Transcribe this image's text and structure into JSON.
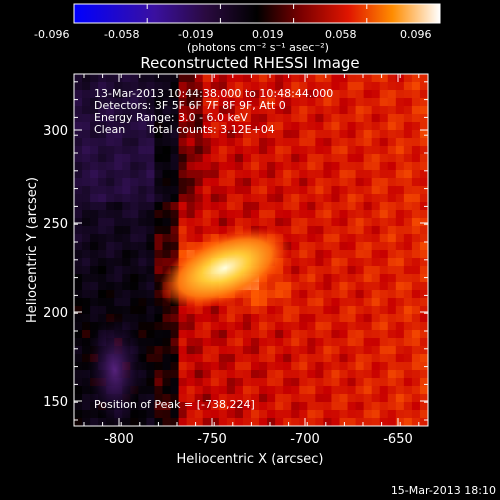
{
  "colorbar": {
    "tick_labels": [
      "-0.096",
      "-0.058",
      "-0.019",
      "0.019",
      "0.058",
      "0.096"
    ],
    "units": "(photons cm⁻² s⁻¹ asec⁻²)"
  },
  "title": "Reconstructed RHESSI Image",
  "info": {
    "time_range": "13-Mar-2013 10:44:38.000 to 10:48:44.000",
    "detectors": "Detectors: 3F 5F 6F 7F 8F 9F, Att 0",
    "energy": "Energy Range: 3.0 - 6.0 keV",
    "clean_label": "Clean",
    "total_counts": "Total counts: 3.12E+04",
    "peak": "Position of Peak = [-738,224]"
  },
  "axes": {
    "xlabel": "Heliocentric X (arcsec)",
    "ylabel": "Heliocentric Y (arcsec)",
    "xticks": [
      "-800",
      "-750",
      "-700",
      "-650"
    ],
    "yticks": [
      "150",
      "200",
      "250",
      "300"
    ]
  },
  "footer_timestamp": "15-Mar-2013 18:10",
  "colors": {
    "background": "#000000",
    "colormap": [
      "#0000ff",
      "#4a1070",
      "#000000",
      "#8a0000",
      "#ff3300",
      "#ffaa00",
      "#ffffff"
    ]
  },
  "image_data": {
    "peak_position": [
      -738,
      224
    ],
    "xlim": [
      -825,
      -625
    ],
    "ylim": [
      135,
      335
    ]
  }
}
